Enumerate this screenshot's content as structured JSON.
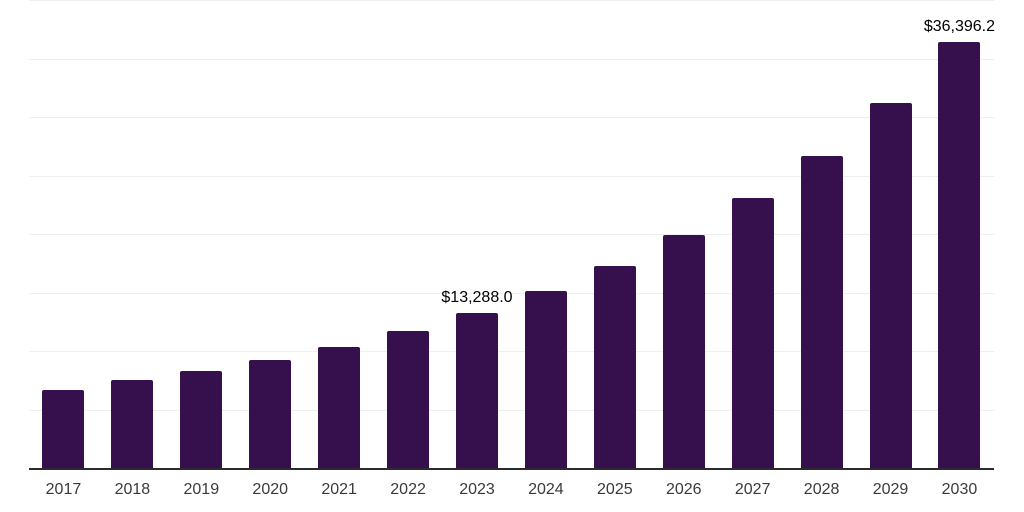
{
  "chart_data": {
    "type": "bar",
    "categories": [
      "2017",
      "2018",
      "2019",
      "2020",
      "2021",
      "2022",
      "2023",
      "2024",
      "2025",
      "2026",
      "2027",
      "2028",
      "2029",
      "2030"
    ],
    "values": [
      6700,
      7490,
      8260,
      9250,
      10350,
      11680,
      13288.0,
      15120,
      17280,
      19930,
      23060,
      26670,
      31200,
      36396.2
    ],
    "data_labels": {
      "2023": "$13,288.0",
      "2030": "$36,396.2"
    },
    "title": "",
    "xlabel": "",
    "ylabel": "",
    "ylim": [
      0,
      40000
    ],
    "gridline_interval": 5000,
    "grid": "horizontal",
    "legend": "none",
    "colors": {
      "bar": "#36104d",
      "axis_line": "#2b2b2b",
      "gridline": "#efefef",
      "value_label": "#000000",
      "tick_label": "#3a3a3a",
      "background": "#ffffff"
    }
  }
}
